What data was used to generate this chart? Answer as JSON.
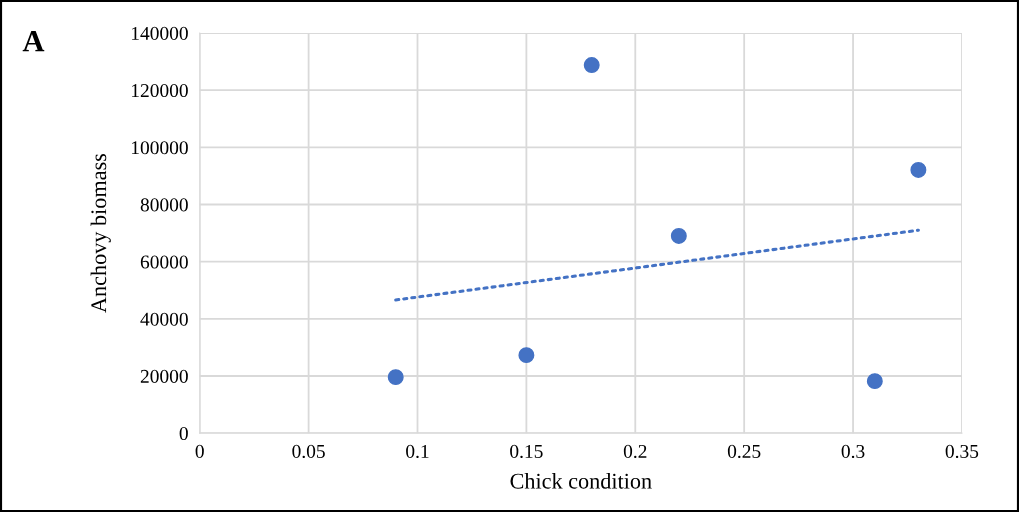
{
  "chart_data": {
    "type": "scatter",
    "xlabel": "Chick condition",
    "ylabel": "Anchovy biomass",
    "annotations": [
      "A"
    ],
    "xlim": [
      0,
      0.35
    ],
    "xticks": [
      0,
      0.05,
      0.1,
      0.15,
      0.2,
      0.25,
      0.3,
      0.35
    ],
    "ylim": [
      0,
      140000
    ],
    "yticks": [
      0,
      20000,
      40000,
      60000,
      80000,
      100000,
      120000,
      140000
    ],
    "grid": true,
    "series": [
      {
        "marker": "circle",
        "color": "#4472c4",
        "x": [
          0.09,
          0.15,
          0.18,
          0.22,
          0.31,
          0.33
        ],
        "values": [
          19600,
          27300,
          128800,
          69000,
          18200,
          92100
        ]
      },
      {
        "type": "line",
        "color": "#4472c4",
        "line_style": "dotted",
        "x": [
          0.09,
          0.33
        ],
        "values": [
          46600,
          71000
        ]
      }
    ]
  }
}
